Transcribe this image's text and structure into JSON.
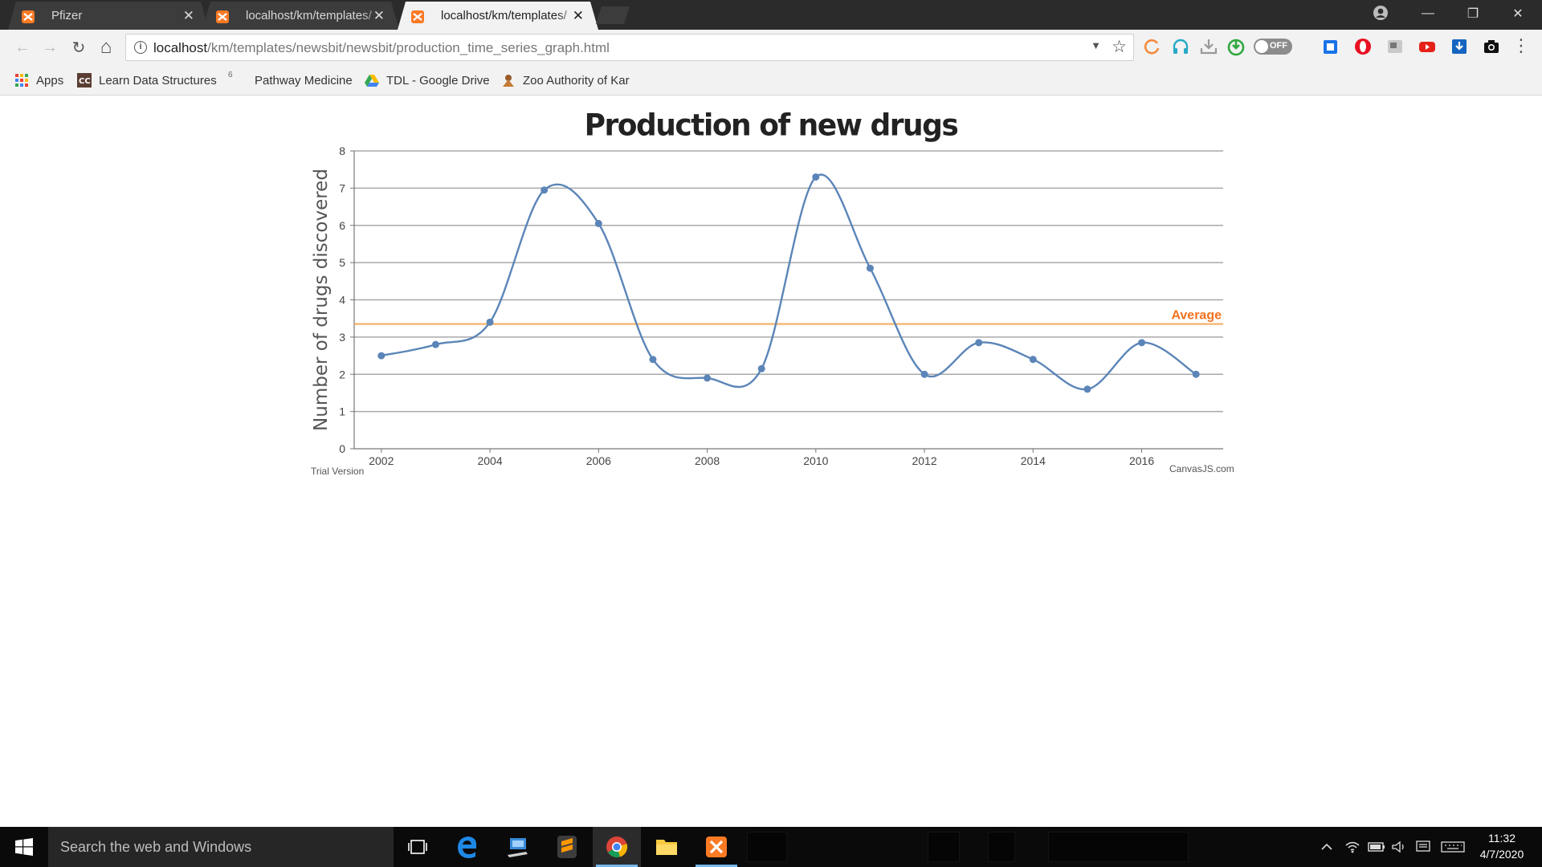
{
  "browser": {
    "tabs": [
      {
        "title": "Pfizer",
        "active": false
      },
      {
        "title": "localhost/km/templates/",
        "active": false
      },
      {
        "title": "localhost/km/templates/",
        "active": true
      }
    ],
    "close_glyph": "✕",
    "window_controls": {
      "minimize": "—",
      "restore": "❐",
      "close": "✕"
    },
    "nav": {
      "back": "←",
      "forward": "→",
      "reload": "↻",
      "home": "⌂"
    },
    "address": {
      "host": "localhost",
      "path": "/km/templates/newsbit/newsbit/production_time_series_graph.html",
      "info_glyph": "i",
      "dropdown_glyph": "▼",
      "star_glyph": "☆"
    },
    "extensions": {
      "toggle_label": "OFF",
      "menu_glyph": "⋮"
    },
    "bookmarks": [
      {
        "label": "Apps",
        "icon": "apps-grid-icon"
      },
      {
        "label": "Learn Data Structures",
        "icon": "cc-icon"
      },
      {
        "label": "Pathway Medicine",
        "icon": "blank-page-icon"
      },
      {
        "label": "TDL - Google Drive",
        "icon": "google-drive-icon"
      },
      {
        "label": "Zoo Authority of Kar",
        "icon": "emblem-icon"
      }
    ],
    "bookmark_overflow_mark": "6"
  },
  "page": {
    "trial_label": "Trial Version",
    "credit": "CanvasJS.com"
  },
  "chart_data": {
    "type": "line",
    "smooth": true,
    "title": "Production of new drugs",
    "xlabel": "",
    "ylabel": "Number of drugs discovered",
    "x": [
      2002,
      2003,
      2004,
      2005,
      2006,
      2007,
      2008,
      2009,
      2010,
      2011,
      2012,
      2013,
      2014,
      2015,
      2016,
      2017
    ],
    "series": [
      {
        "values": [
          2.5,
          2.8,
          3.4,
          6.95,
          6.05,
          2.4,
          1.9,
          2.15,
          7.3,
          4.85,
          2.0,
          2.85,
          2.4,
          1.6,
          2.85,
          2.0
        ],
        "color": "#5b85b8"
      }
    ],
    "xticks": [
      2002,
      2004,
      2006,
      2008,
      2010,
      2012,
      2014,
      2016
    ],
    "yticks": [
      0,
      1,
      2,
      3,
      4,
      5,
      6,
      7,
      8
    ],
    "xlim": [
      2001.5,
      2017.5
    ],
    "ylim": [
      0,
      8
    ],
    "grid": true,
    "average_line": {
      "value": 3.35,
      "label": "Average",
      "color": "#f5a043",
      "label_color": "#f0731f"
    },
    "axis_color": "#777777",
    "grid_color": "#a9a9a9"
  },
  "taskbar": {
    "search_placeholder": "Search the web and Windows",
    "apps": [
      "task-view-icon",
      "edge-icon",
      "remote-desktop-icon",
      "sublime-text-icon",
      "chrome-icon",
      "file-explorer-icon",
      "xampp-icon"
    ],
    "time": "11:32",
    "date": "4/7/2020"
  }
}
